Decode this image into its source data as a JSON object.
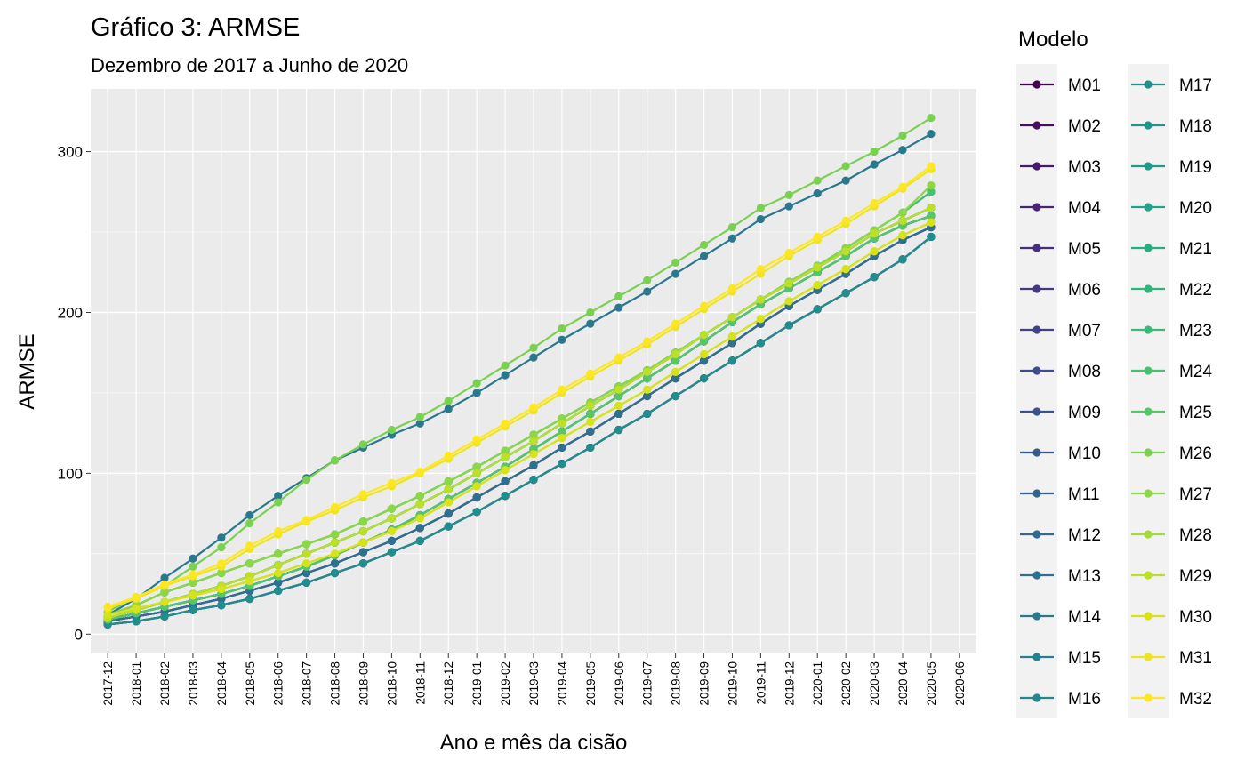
{
  "chart_data": {
    "type": "line",
    "title": "Gráfico 3: ARMSE",
    "subtitle": "Dezembro de 2017 a Junho de 2020",
    "x_label": "Ano e mês da cisão",
    "y_label": "ARMSE",
    "legend_title": "Modelo",
    "legend": "right",
    "grid": true,
    "ylim": [
      -12,
      339
    ],
    "yticks": [
      0,
      100,
      200,
      300
    ],
    "categories": [
      "2017-12",
      "2018-01",
      "2018-02",
      "2018-03",
      "2018-04",
      "2018-05",
      "2018-06",
      "2018-07",
      "2018-08",
      "2018-09",
      "2018-10",
      "2018-11",
      "2018-12",
      "2019-01",
      "2019-02",
      "2019-03",
      "2019-04",
      "2019-05",
      "2019-06",
      "2019-07",
      "2019-08",
      "2019-09",
      "2019-10",
      "2019-11",
      "2019-12",
      "2020-01",
      "2020-02",
      "2020-03",
      "2020-04",
      "2020-05",
      "2020-06"
    ],
    "series": [
      {
        "name": "M01",
        "color": "#440154",
        "values": [
          8,
          11,
          14,
          18,
          22,
          27,
          32,
          38,
          44,
          51,
          58,
          66,
          75,
          85,
          95,
          105,
          116,
          126,
          137,
          148,
          159,
          170,
          181,
          193,
          204,
          214,
          224,
          235,
          245,
          253,
          null
        ]
      },
      {
        "name": "M02",
        "color": "#470D60",
        "values": [
          6,
          8,
          11,
          15,
          18,
          22,
          27,
          32,
          38,
          44,
          51,
          58,
          67,
          76,
          86,
          96,
          106,
          116,
          127,
          137,
          148,
          159,
          170,
          181,
          192,
          202,
          212,
          222,
          233,
          247,
          null
        ]
      },
      {
        "name": "M03",
        "color": "#48196B",
        "values": [
          8,
          11,
          14,
          18,
          22,
          27,
          32,
          38,
          44,
          51,
          58,
          66,
          75,
          85,
          95,
          105,
          116,
          126,
          137,
          148,
          159,
          170,
          181,
          193,
          204,
          214,
          224,
          235,
          245,
          253,
          null
        ]
      },
      {
        "name": "M04",
        "color": "#482475",
        "values": [
          9,
          13,
          17,
          21,
          25,
          30,
          36,
          42,
          49,
          57,
          65,
          74,
          84,
          94,
          104,
          115,
          126,
          137,
          148,
          159,
          170,
          182,
          194,
          205,
          215,
          225,
          235,
          246,
          254,
          260,
          null
        ]
      },
      {
        "name": "M05",
        "color": "#472E7C",
        "values": [
          6,
          8,
          11,
          15,
          18,
          22,
          27,
          32,
          38,
          44,
          51,
          58,
          67,
          76,
          86,
          96,
          106,
          116,
          127,
          137,
          148,
          159,
          170,
          181,
          192,
          202,
          212,
          222,
          233,
          247,
          null
        ]
      },
      {
        "name": "M06",
        "color": "#453882",
        "values": [
          9,
          13,
          17,
          21,
          25,
          30,
          36,
          42,
          49,
          57,
          65,
          74,
          84,
          94,
          104,
          115,
          126,
          137,
          148,
          159,
          170,
          182,
          194,
          205,
          215,
          225,
          235,
          246,
          254,
          260,
          null
        ]
      },
      {
        "name": "M07",
        "color": "#424186",
        "values": [
          8,
          11,
          14,
          18,
          22,
          27,
          32,
          38,
          44,
          51,
          58,
          66,
          75,
          85,
          95,
          105,
          116,
          126,
          137,
          148,
          159,
          170,
          181,
          193,
          204,
          214,
          224,
          235,
          245,
          253,
          null
        ]
      },
      {
        "name": "M08",
        "color": "#3F4B8A",
        "values": [
          9,
          13,
          17,
          21,
          25,
          30,
          36,
          42,
          49,
          57,
          65,
          74,
          84,
          94,
          104,
          115,
          126,
          137,
          148,
          159,
          170,
          182,
          194,
          205,
          215,
          225,
          235,
          246,
          254,
          260,
          null
        ]
      },
      {
        "name": "M09",
        "color": "#3B528B",
        "values": [
          6,
          8,
          11,
          15,
          18,
          22,
          27,
          32,
          38,
          44,
          51,
          58,
          67,
          76,
          86,
          96,
          106,
          116,
          127,
          137,
          148,
          159,
          170,
          181,
          192,
          202,
          212,
          222,
          233,
          247,
          null
        ]
      },
      {
        "name": "M10",
        "color": "#375B8D",
        "values": [
          10,
          15,
          20,
          25,
          30,
          36,
          43,
          50,
          57,
          64,
          72,
          81,
          90,
          100,
          110,
          120,
          131,
          142,
          152,
          163,
          174,
          186,
          197,
          208,
          218,
          228,
          238,
          249,
          257,
          265,
          null
        ]
      },
      {
        "name": "M11",
        "color": "#34638D",
        "values": [
          9,
          13,
          17,
          21,
          25,
          30,
          36,
          42,
          49,
          57,
          65,
          74,
          84,
          94,
          104,
          115,
          126,
          137,
          148,
          159,
          170,
          182,
          194,
          205,
          215,
          225,
          235,
          246,
          254,
          260,
          null
        ]
      },
      {
        "name": "M12",
        "color": "#306B8E",
        "values": [
          6,
          8,
          11,
          15,
          18,
          22,
          27,
          32,
          38,
          44,
          51,
          58,
          67,
          76,
          86,
          96,
          106,
          116,
          127,
          137,
          148,
          159,
          170,
          181,
          192,
          202,
          212,
          222,
          233,
          247,
          null
        ]
      },
      {
        "name": "M13",
        "color": "#2D718E",
        "values": [
          8,
          11,
          14,
          18,
          22,
          27,
          32,
          38,
          44,
          51,
          58,
          66,
          75,
          85,
          95,
          105,
          116,
          126,
          137,
          148,
          159,
          170,
          181,
          193,
          204,
          214,
          224,
          235,
          245,
          253,
          null
        ]
      },
      {
        "name": "M14",
        "color": "#2A788E",
        "values": [
          12,
          22,
          35,
          47,
          60,
          74,
          86,
          97,
          108,
          116,
          124,
          131,
          140,
          150,
          161,
          172,
          183,
          193,
          203,
          213,
          224,
          235,
          246,
          258,
          266,
          274,
          282,
          292,
          301,
          311,
          null
        ]
      },
      {
        "name": "M15",
        "color": "#27808E",
        "values": [
          10,
          15,
          20,
          25,
          30,
          36,
          43,
          50,
          57,
          64,
          72,
          81,
          90,
          100,
          110,
          120,
          131,
          142,
          152,
          163,
          174,
          186,
          197,
          208,
          218,
          228,
          238,
          249,
          257,
          265,
          null
        ]
      },
      {
        "name": "M16",
        "color": "#25878E",
        "values": [
          9,
          13,
          17,
          21,
          25,
          30,
          36,
          42,
          49,
          57,
          65,
          74,
          84,
          94,
          104,
          115,
          126,
          137,
          148,
          159,
          170,
          182,
          194,
          205,
          215,
          225,
          235,
          246,
          254,
          260,
          null
        ]
      },
      {
        "name": "M17",
        "color": "#228D8D",
        "values": [
          6,
          8,
          11,
          15,
          18,
          22,
          27,
          32,
          38,
          44,
          51,
          58,
          67,
          76,
          86,
          96,
          106,
          116,
          127,
          137,
          148,
          159,
          170,
          181,
          192,
          202,
          212,
          222,
          233,
          247,
          null
        ]
      },
      {
        "name": "M18",
        "color": "#1F958B",
        "values": [
          10,
          15,
          20,
          25,
          30,
          36,
          43,
          50,
          57,
          64,
          72,
          81,
          90,
          100,
          110,
          120,
          131,
          142,
          152,
          163,
          174,
          186,
          197,
          208,
          218,
          228,
          238,
          249,
          257,
          265,
          null
        ]
      },
      {
        "name": "M19",
        "color": "#1F9C89",
        "values": [
          12,
          18,
          26,
          32,
          38,
          44,
          50,
          56,
          62,
          70,
          78,
          86,
          95,
          104,
          114,
          124,
          134,
          144,
          154,
          164,
          175,
          186,
          197,
          208,
          219,
          229,
          240,
          251,
          262,
          275,
          null
        ]
      },
      {
        "name": "M20",
        "color": "#20A386",
        "values": [
          9,
          13,
          17,
          21,
          25,
          30,
          36,
          42,
          49,
          57,
          65,
          74,
          84,
          94,
          104,
          115,
          126,
          137,
          148,
          159,
          170,
          182,
          194,
          205,
          215,
          225,
          235,
          246,
          254,
          260,
          null
        ]
      },
      {
        "name": "M21",
        "color": "#26AD81",
        "values": [
          10,
          15,
          20,
          25,
          30,
          36,
          43,
          50,
          57,
          64,
          72,
          81,
          90,
          100,
          110,
          120,
          131,
          142,
          152,
          163,
          174,
          186,
          197,
          208,
          218,
          228,
          238,
          249,
          257,
          265,
          null
        ]
      },
      {
        "name": "M22",
        "color": "#2FB47C",
        "values": [
          12,
          18,
          26,
          32,
          38,
          44,
          50,
          56,
          62,
          70,
          78,
          86,
          95,
          104,
          114,
          124,
          134,
          144,
          154,
          164,
          175,
          186,
          197,
          208,
          219,
          229,
          240,
          251,
          262,
          275,
          null
        ]
      },
      {
        "name": "M23",
        "color": "#3ABA76",
        "values": [
          10,
          15,
          20,
          25,
          30,
          36,
          43,
          50,
          57,
          64,
          72,
          81,
          90,
          100,
          110,
          120,
          131,
          142,
          152,
          163,
          174,
          186,
          197,
          208,
          218,
          228,
          238,
          249,
          257,
          265,
          null
        ]
      },
      {
        "name": "M24",
        "color": "#48C16E",
        "values": [
          12,
          18,
          26,
          32,
          38,
          44,
          50,
          56,
          62,
          70,
          78,
          86,
          95,
          104,
          114,
          124,
          134,
          144,
          154,
          164,
          175,
          186,
          197,
          208,
          219,
          229,
          240,
          251,
          262,
          275,
          null
        ]
      },
      {
        "name": "M25",
        "color": "#56C667",
        "values": [
          9,
          13,
          17,
          21,
          25,
          30,
          36,
          42,
          49,
          57,
          65,
          74,
          84,
          94,
          104,
          115,
          126,
          137,
          148,
          159,
          170,
          182,
          194,
          205,
          215,
          225,
          235,
          246,
          254,
          260,
          null
        ]
      },
      {
        "name": "M26",
        "color": "#7AD151",
        "values": [
          14,
          23,
          30,
          42,
          54,
          69,
          82,
          96,
          108,
          118,
          127,
          135,
          145,
          156,
          167,
          178,
          190,
          200,
          210,
          220,
          231,
          242,
          253,
          265,
          273,
          282,
          291,
          300,
          310,
          321,
          null
        ]
      },
      {
        "name": "M27",
        "color": "#8DD645",
        "values": [
          12,
          18,
          26,
          32,
          38,
          44,
          50,
          56,
          62,
          70,
          78,
          86,
          95,
          104,
          114,
          124,
          134,
          144,
          154,
          164,
          175,
          186,
          197,
          208,
          219,
          229,
          240,
          251,
          262,
          279,
          null
        ]
      },
      {
        "name": "M28",
        "color": "#A5DB36",
        "values": [
          12,
          16,
          20,
          24,
          28,
          33,
          38,
          44,
          50,
          57,
          64,
          72,
          82,
          92,
          102,
          112,
          122,
          132,
          142,
          152,
          163,
          174,
          185,
          196,
          207,
          217,
          227,
          238,
          248,
          256,
          null
        ]
      },
      {
        "name": "M29",
        "color": "#BDDF26",
        "values": [
          10,
          15,
          20,
          25,
          30,
          36,
          43,
          50,
          57,
          64,
          72,
          81,
          90,
          100,
          110,
          120,
          131,
          142,
          152,
          163,
          174,
          186,
          197,
          208,
          218,
          228,
          238,
          249,
          257,
          265,
          null
        ]
      },
      {
        "name": "M30",
        "color": "#D8E219",
        "values": [
          12,
          16,
          20,
          24,
          28,
          33,
          38,
          44,
          50,
          57,
          64,
          72,
          82,
          92,
          102,
          112,
          122,
          132,
          142,
          152,
          163,
          174,
          185,
          196,
          207,
          217,
          227,
          238,
          248,
          256,
          null
        ]
      },
      {
        "name": "M31",
        "color": "#EEE51C",
        "values": [
          16,
          22,
          30,
          36,
          42,
          53,
          62,
          70,
          77,
          85,
          92,
          100,
          109,
          119,
          129,
          139,
          150,
          160,
          170,
          180,
          191,
          202,
          213,
          224,
          235,
          245,
          255,
          266,
          277,
          289,
          null
        ]
      },
      {
        "name": "M32",
        "color": "#FDE725",
        "values": [
          17,
          23,
          31,
          37,
          44,
          55,
          64,
          71,
          79,
          87,
          94,
          101,
          111,
          121,
          131,
          141,
          152,
          162,
          172,
          182,
          193,
          204,
          215,
          227,
          237,
          247,
          257,
          268,
          278,
          291,
          null
        ]
      }
    ]
  }
}
